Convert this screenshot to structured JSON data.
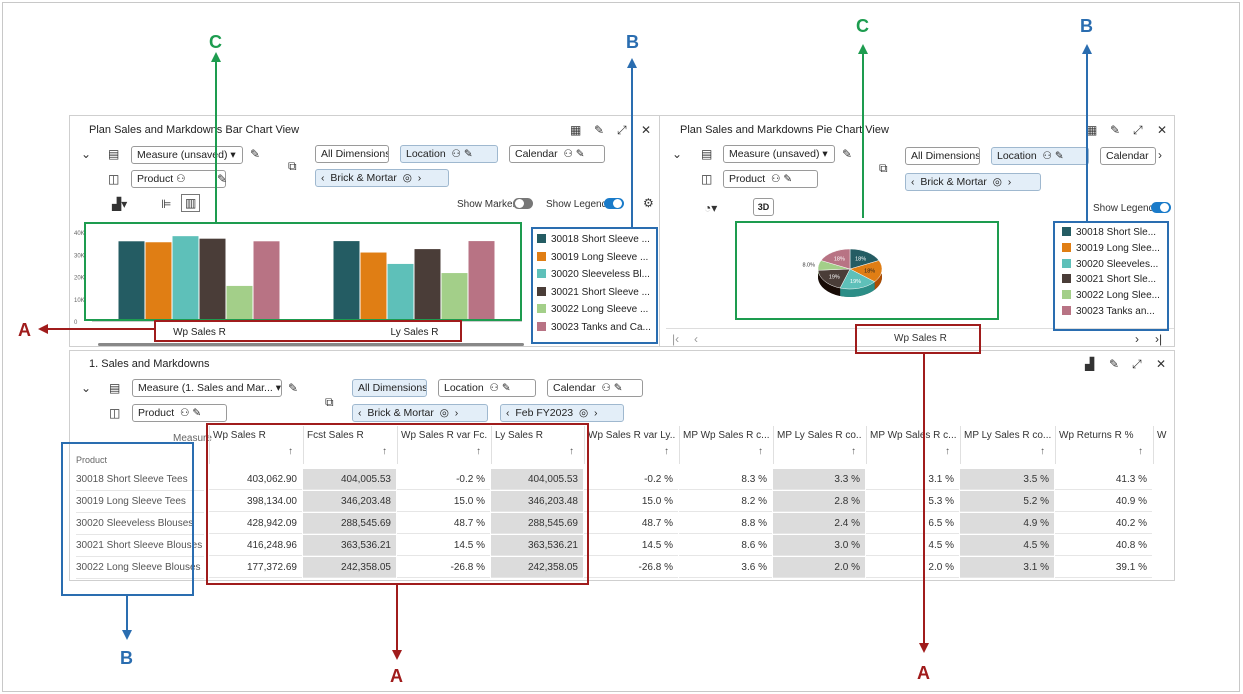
{
  "colors": {
    "series": [
      "#245c63",
      "#e07e14",
      "#5ec0b9",
      "#4a3d38",
      "#a3cf89",
      "#b87384"
    ],
    "red": "#a01c1c",
    "blue": "#2a6db0",
    "green": "#1d9c4f"
  },
  "bar_panel": {
    "title": "Plan Sales and Markdowns Bar Chart View",
    "measure": "Measure (unsaved)",
    "product": "Product",
    "all_dimensions": "All Dimensions",
    "location": "Location",
    "calendar": "Calendar",
    "brick": "Brick & Mortar",
    "show_marker": "Show Marker",
    "show_legend": "Show Legend",
    "legend": [
      "30018 Short Sleeve ...",
      "30019 Long Sleeve ...",
      "30020 Sleeveless Bl...",
      "30021 Short Sleeve ...",
      "30022 Long Sleeve ...",
      "30023 Tanks and Ca..."
    ],
    "y_ticks": [
      "40K",
      "30K",
      "20K",
      "10K",
      "0"
    ]
  },
  "chart_data": {
    "type": "bar",
    "categories": [
      "Wp Sales R",
      "Ly Sales R"
    ],
    "series": [
      {
        "name": "30018 Short Sleeve ...",
        "values": [
          403062.9,
          404005.53
        ]
      },
      {
        "name": "30019 Long Sleeve ...",
        "values": [
          398134.0,
          346203.48
        ]
      },
      {
        "name": "30020 Sleeveless Bl...",
        "values": [
          428942.09,
          288545.69
        ]
      },
      {
        "name": "30021 Short Sleeve ...",
        "values": [
          416248.96,
          363536.21
        ]
      },
      {
        "name": "30022 Long Sleeve ...",
        "values": [
          177372.69,
          242358.05
        ]
      },
      {
        "name": "30023 Tanks and Ca...",
        "values": [
          403000,
          404000
        ]
      }
    ],
    "ylim": [
      0,
      450000
    ]
  },
  "pie_panel": {
    "title": "Plan Sales and Markdowns Pie Chart View",
    "measure": "Measure (unsaved)",
    "product": "Product",
    "all_dimensions": "All Dimensions",
    "location": "Location",
    "calendar": "Calendar",
    "brick": "Brick & Mortar",
    "btn3d": "3D",
    "show_legend": "Show Legend",
    "legend": [
      "30018 Short Sle...",
      "30019 Long Slee...",
      "30020 Sleeveles...",
      "30021 Short Sle...",
      "30022 Long Slee...",
      "30023 Tanks an..."
    ],
    "slice_labels": [
      "18%",
      "18%",
      "19%",
      "19%",
      "8.0%",
      "18%"
    ],
    "slice_values": [
      18,
      18,
      19,
      19,
      8,
      18
    ],
    "page_label": "Wp Sales R"
  },
  "grid_panel": {
    "title": "1. Sales and Markdowns",
    "measure": "Measure (1. Sales and Mar...",
    "product": "Product",
    "all_dimensions": "All Dimensions",
    "location": "Location",
    "calendar": "Calendar",
    "brick": "Brick & Mortar",
    "period": "Feb FY2023",
    "measure_label": "Measure",
    "product_label": "Product",
    "columns": [
      "Wp Sales R",
      "Fcst Sales R",
      "Wp Sales R var Fc...",
      "Ly Sales R",
      "Wp Sales R var Ly...",
      "MP Wp Sales R c...",
      "MP Ly Sales R co...",
      "MP Wp Sales R c...",
      "MP Ly Sales R co...",
      "Wp Returns R %",
      "W"
    ],
    "rows": [
      {
        "label": "30018 Short Sleeve Tees",
        "cells": [
          "403,062.90",
          "404,005.53",
          "-0.2 %",
          "404,005.53",
          "-0.2 %",
          "8.3 %",
          "3.3 %",
          "3.1 %",
          "3.5 %",
          "41.3 %"
        ]
      },
      {
        "label": "30019 Long Sleeve Tees",
        "cells": [
          "398,134.00",
          "346,203.48",
          "15.0 %",
          "346,203.48",
          "15.0 %",
          "8.2 %",
          "2.8 %",
          "5.3 %",
          "5.2 %",
          "40.9 %"
        ]
      },
      {
        "label": "30020 Sleeveless Blouses",
        "cells": [
          "428,942.09",
          "288,545.69",
          "48.7 %",
          "288,545.69",
          "48.7 %",
          "8.8 %",
          "2.4 %",
          "6.5 %",
          "4.9 %",
          "40.2 %"
        ]
      },
      {
        "label": "30021 Short Sleeve Blouses",
        "cells": [
          "416,248.96",
          "363,536.21",
          "14.5 %",
          "363,536.21",
          "14.5 %",
          "8.6 %",
          "3.0 %",
          "4.5 %",
          "4.5 %",
          "40.8 %"
        ]
      },
      {
        "label": "30022 Long Sleeve Blouses",
        "cells": [
          "177,372.69",
          "242,358.05",
          "-26.8 %",
          "242,358.05",
          "-26.8 %",
          "3.6 %",
          "2.0 %",
          "2.0 %",
          "3.1 %",
          "39.1 %"
        ]
      }
    ]
  },
  "annotations": {
    "a": "A",
    "b": "B",
    "c": "C"
  }
}
